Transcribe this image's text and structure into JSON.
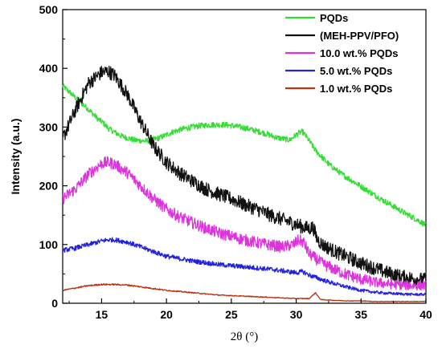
{
  "chart_data": {
    "type": "line",
    "title": "",
    "xlabel": "2θ (°)",
    "ylabel": "Intensity (a.u.)",
    "xlim": [
      12,
      40
    ],
    "ylim": [
      0,
      500
    ],
    "xticks": [
      "15",
      "20",
      "25",
      "30",
      "35",
      "40"
    ],
    "yticks": [
      "0",
      "100",
      "200",
      "300",
      "400",
      "500"
    ],
    "legend_position": "top-right",
    "series": [
      {
        "name": "PQDs",
        "color": "#33dd33",
        "x": [
          12,
          13,
          14,
          14.8,
          15.1,
          15.5,
          16.5,
          17.5,
          18.5,
          19.5,
          20.5,
          21.5,
          22.5,
          23.5,
          24.5,
          25.5,
          26.5,
          27.5,
          28.5,
          29.5,
          30.2,
          30.5,
          30.9,
          31.5,
          32.5,
          33.5,
          34.5,
          35.5,
          36.5,
          37.5,
          38.5,
          39.5,
          40
        ],
        "y": [
          370,
          350,
          330,
          312,
          308,
          298,
          285,
          278,
          276,
          282,
          292,
          298,
          302,
          304,
          304,
          301,
          296,
          290,
          282,
          278,
          290,
          292,
          280,
          260,
          237,
          220,
          206,
          192,
          178,
          165,
          152,
          140,
          133
        ]
      },
      {
        "name": "(MEH-PPV/PFO)",
        "color": "#111111",
        "x": [
          12,
          13,
          14,
          15,
          15.5,
          16,
          17,
          18,
          19,
          20,
          21,
          22,
          23,
          24,
          25,
          26,
          27,
          28,
          29,
          30,
          30.5,
          31,
          31.3,
          31.6,
          32,
          33,
          34,
          35,
          36,
          37,
          38,
          39,
          40
        ],
        "y": [
          280,
          330,
          375,
          393,
          395,
          388,
          355,
          310,
          268,
          240,
          222,
          208,
          195,
          186,
          178,
          168,
          160,
          150,
          142,
          134,
          130,
          127,
          130,
          110,
          100,
          88,
          78,
          68,
          60,
          52,
          46,
          42,
          40
        ]
      },
      {
        "name": "10.0 wt.% PQDs",
        "color": "#dd33dd",
        "x": [
          12,
          13,
          14,
          15,
          15.5,
          16,
          17,
          18,
          19,
          20,
          21,
          22,
          23,
          24,
          25,
          26,
          27,
          28,
          29,
          29.8,
          30.2,
          30.6,
          31,
          32,
          33,
          34,
          35,
          36,
          37,
          38,
          39,
          40
        ],
        "y": [
          178,
          195,
          220,
          238,
          240,
          237,
          222,
          200,
          178,
          160,
          147,
          137,
          128,
          120,
          114,
          108,
          103,
          99,
          96,
          100,
          108,
          103,
          84,
          68,
          57,
          48,
          41,
          36,
          33,
          31,
          30,
          30
        ]
      },
      {
        "name": "5.0 wt.% PQDs",
        "color": "#2222dd",
        "x": [
          12,
          13,
          14,
          15,
          15.5,
          16,
          17,
          18,
          19,
          20,
          21,
          22,
          23,
          24,
          25,
          26,
          27,
          28,
          29,
          30,
          30.5,
          31,
          32,
          33,
          34,
          35,
          36,
          37,
          38,
          39,
          40
        ],
        "y": [
          90,
          94,
          100,
          106,
          108,
          108,
          104,
          96,
          88,
          80,
          76,
          72,
          69,
          66,
          64,
          62,
          60,
          58,
          55,
          52,
          54,
          48,
          40,
          33,
          27,
          22,
          19,
          17,
          16,
          15,
          15
        ]
      },
      {
        "name": "1.0 wt.% PQDs",
        "color": "#bb3311",
        "x": [
          12,
          13,
          14,
          15,
          16,
          17,
          18,
          19,
          20,
          21,
          22,
          23,
          24,
          25,
          26,
          27,
          28,
          29,
          30,
          31,
          31.3,
          31.5,
          31.8,
          32,
          33,
          34,
          35,
          36,
          37,
          38,
          39,
          40
        ],
        "y": [
          22,
          26,
          30,
          32,
          32,
          31,
          28,
          25,
          22,
          20,
          18,
          16,
          14,
          13,
          12,
          11,
          10,
          9,
          8,
          8,
          14,
          18,
          8,
          6,
          5,
          4,
          4,
          3,
          3,
          3,
          3,
          3
        ]
      }
    ]
  }
}
